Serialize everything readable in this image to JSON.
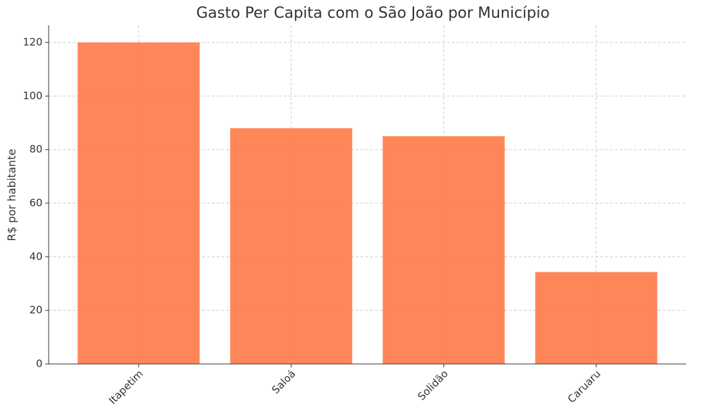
{
  "chart_data": {
    "type": "bar",
    "title": "Gasto Per Capita com o São João por Município",
    "y_label": "R$ por habitante",
    "categories": [
      "Itapetim",
      "Saloá",
      "Solidão",
      "Caruaru"
    ],
    "values": [
      120,
      88,
      85,
      34.3
    ],
    "color": "#ff7f50",
    "ylim": [
      0,
      126.4
    ],
    "yticks": [
      0,
      20,
      40,
      60,
      80,
      100,
      120
    ],
    "grid": true
  }
}
